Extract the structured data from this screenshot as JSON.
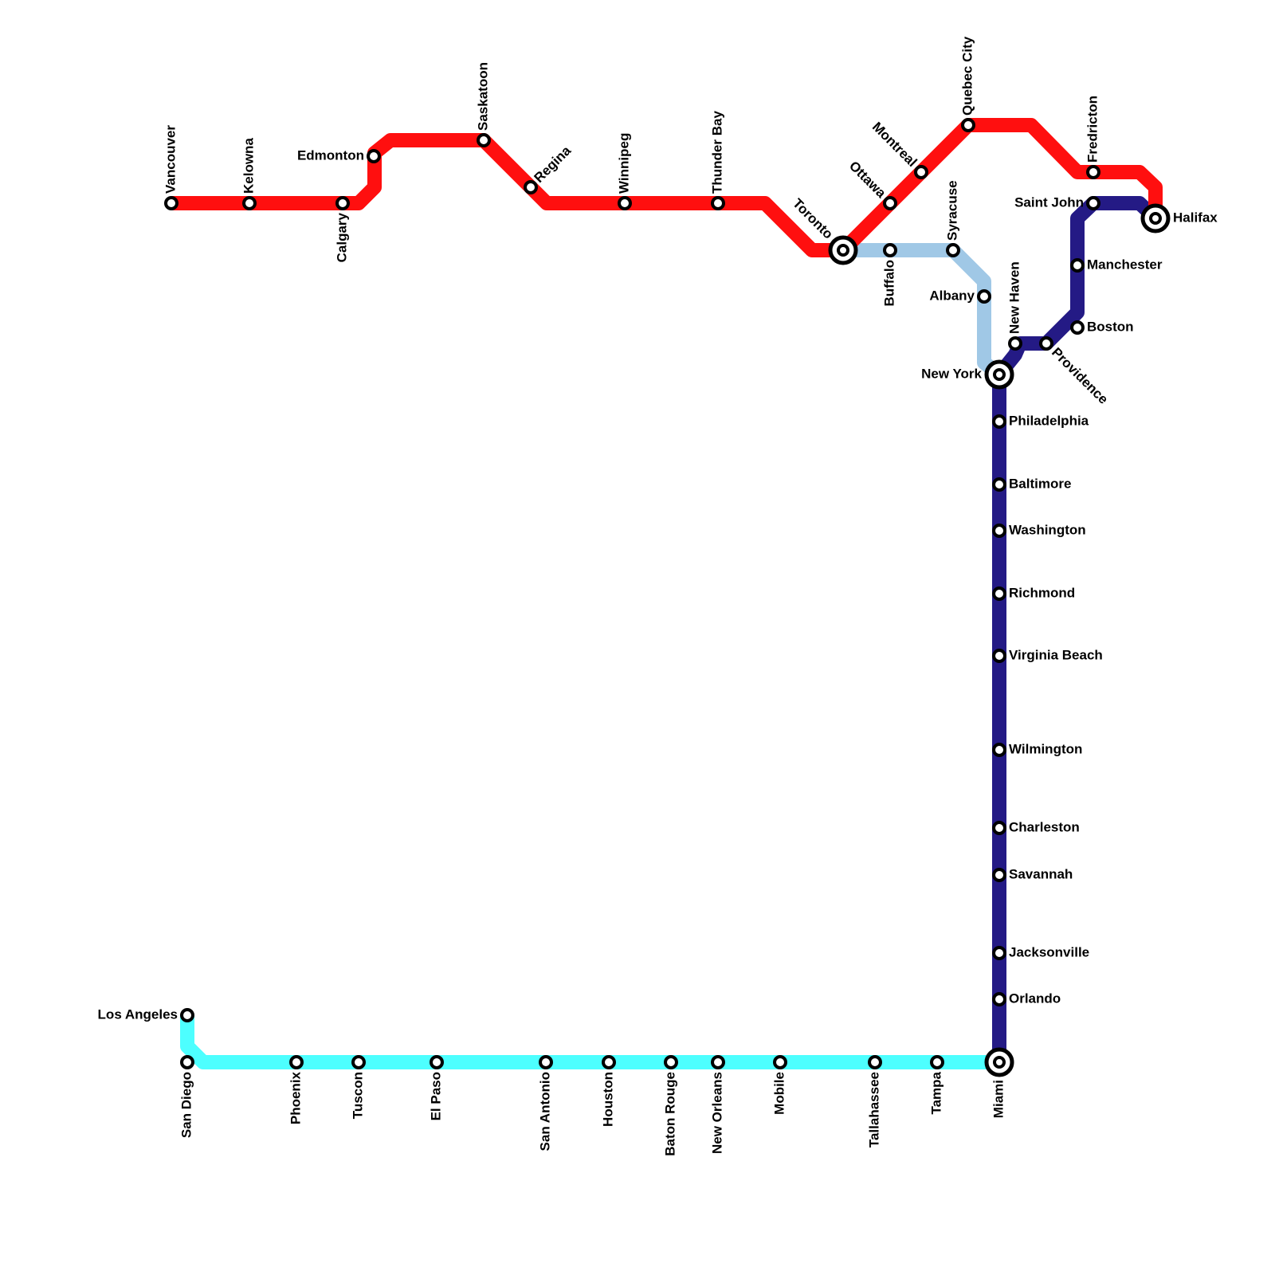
{
  "stations": [
    "Vancouver",
    "Kelowna",
    "Calgary",
    "Edmonton",
    "Saskatoon",
    "Regina",
    "Winnipeg",
    "Thunder Bay",
    "Toronto",
    "Ottawa",
    "Montreal",
    "Quebec City",
    "Fredricton",
    "Halifax",
    "Buffalo",
    "Syracuse",
    "Albany",
    "New York",
    "New Haven",
    "Providence",
    "Boston",
    "Manchester",
    "Saint John",
    "Philadelphia",
    "Baltimore",
    "Washington",
    "Richmond",
    "Virginia Beach",
    "Wilmington",
    "Charleston",
    "Savannah",
    "Jacksonville",
    "Orlando",
    "Miami",
    "Los Angeles",
    "San Diego",
    "Phoenix",
    "Tuscon",
    "El Paso",
    "San Antonio",
    "Houston",
    "Baton Rouge",
    "New Orleans",
    "Mobile",
    "Tallahassee",
    "Tampa"
  ]
}
